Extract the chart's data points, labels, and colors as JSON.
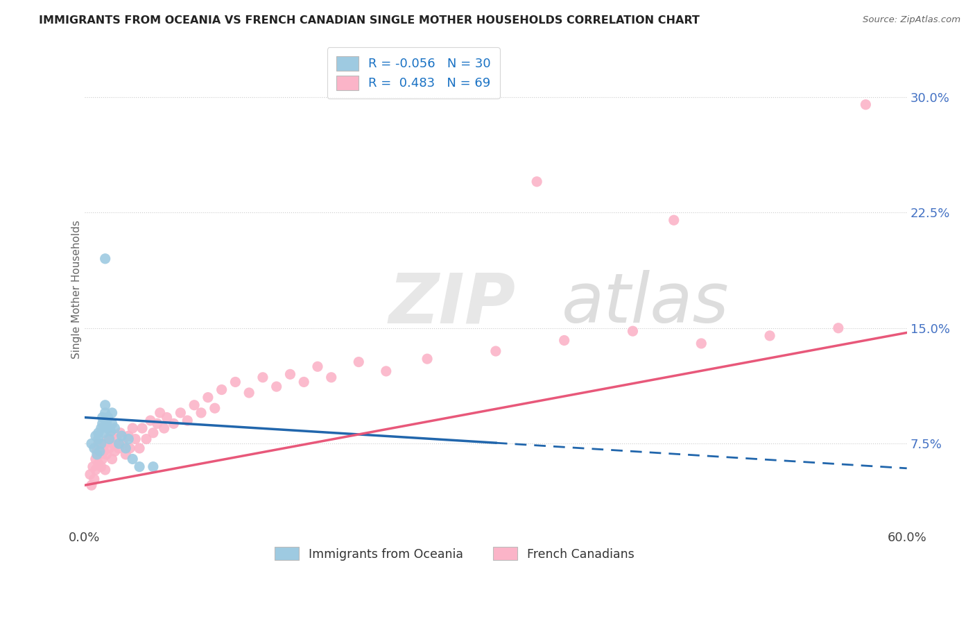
{
  "title": "IMMIGRANTS FROM OCEANIA VS FRENCH CANADIAN SINGLE MOTHER HOUSEHOLDS CORRELATION CHART",
  "source": "Source: ZipAtlas.com",
  "ylabel": "Single Mother Households",
  "ytick_labels": [
    "7.5%",
    "15.0%",
    "22.5%",
    "30.0%"
  ],
  "ytick_values": [
    0.075,
    0.15,
    0.225,
    0.3
  ],
  "xmin": 0.0,
  "xmax": 0.6,
  "ymin": 0.02,
  "ymax": 0.33,
  "blue_R": -0.056,
  "blue_N": 30,
  "pink_R": 0.483,
  "pink_N": 69,
  "blue_color": "#9ecae1",
  "pink_color": "#fbb4c8",
  "blue_line_color": "#2166ac",
  "pink_line_color": "#e8587a",
  "legend_label_blue": "Immigrants from Oceania",
  "legend_label_pink": "French Canadians",
  "blue_line_solid_end": 0.3,
  "blue_scatter_x": [
    0.005,
    0.007,
    0.008,
    0.009,
    0.01,
    0.01,
    0.011,
    0.012,
    0.012,
    0.013,
    0.013,
    0.014,
    0.015,
    0.015,
    0.016,
    0.017,
    0.017,
    0.018,
    0.019,
    0.02,
    0.02,
    0.022,
    0.025,
    0.027,
    0.03,
    0.032,
    0.035,
    0.04,
    0.05,
    0.015
  ],
  "blue_scatter_y": [
    0.075,
    0.072,
    0.08,
    0.068,
    0.078,
    0.082,
    0.07,
    0.085,
    0.075,
    0.088,
    0.092,
    0.082,
    0.095,
    0.1,
    0.088,
    0.085,
    0.092,
    0.078,
    0.083,
    0.088,
    0.095,
    0.085,
    0.075,
    0.08,
    0.072,
    0.078,
    0.065,
    0.06,
    0.06,
    0.195
  ],
  "pink_scatter_x": [
    0.004,
    0.005,
    0.006,
    0.007,
    0.008,
    0.008,
    0.009,
    0.01,
    0.01,
    0.011,
    0.012,
    0.012,
    0.013,
    0.014,
    0.015,
    0.015,
    0.016,
    0.017,
    0.018,
    0.019,
    0.02,
    0.021,
    0.022,
    0.023,
    0.025,
    0.026,
    0.028,
    0.03,
    0.032,
    0.033,
    0.035,
    0.037,
    0.04,
    0.042,
    0.045,
    0.048,
    0.05,
    0.053,
    0.055,
    0.058,
    0.06,
    0.065,
    0.07,
    0.075,
    0.08,
    0.085,
    0.09,
    0.095,
    0.1,
    0.11,
    0.12,
    0.13,
    0.14,
    0.15,
    0.16,
    0.17,
    0.18,
    0.2,
    0.22,
    0.25,
    0.3,
    0.35,
    0.4,
    0.45,
    0.5,
    0.55,
    0.57,
    0.43,
    0.33
  ],
  "pink_scatter_y": [
    0.055,
    0.048,
    0.06,
    0.052,
    0.065,
    0.058,
    0.07,
    0.062,
    0.075,
    0.068,
    0.06,
    0.072,
    0.065,
    0.07,
    0.058,
    0.075,
    0.068,
    0.078,
    0.072,
    0.08,
    0.065,
    0.075,
    0.07,
    0.078,
    0.072,
    0.082,
    0.075,
    0.068,
    0.08,
    0.072,
    0.085,
    0.078,
    0.072,
    0.085,
    0.078,
    0.09,
    0.082,
    0.088,
    0.095,
    0.085,
    0.092,
    0.088,
    0.095,
    0.09,
    0.1,
    0.095,
    0.105,
    0.098,
    0.11,
    0.115,
    0.108,
    0.118,
    0.112,
    0.12,
    0.115,
    0.125,
    0.118,
    0.128,
    0.122,
    0.13,
    0.135,
    0.142,
    0.148,
    0.14,
    0.145,
    0.15,
    0.295,
    0.22,
    0.245
  ]
}
